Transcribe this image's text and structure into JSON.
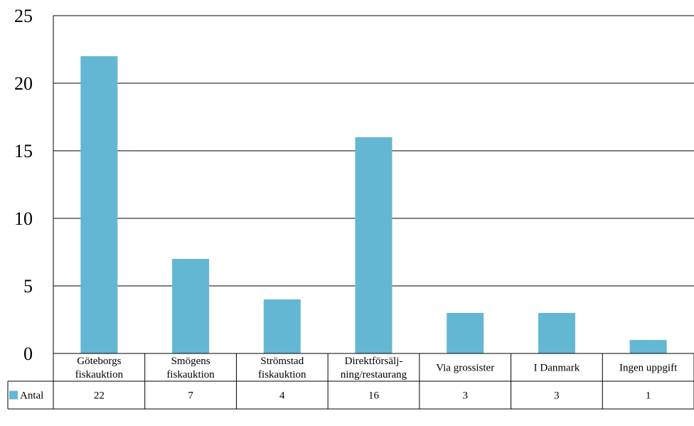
{
  "chart_data": {
    "type": "bar",
    "categories": [
      [
        "Göteborgs",
        "fiskauktion"
      ],
      [
        "Smögens",
        "fiskauktion"
      ],
      [
        "Strömstad",
        "fiskauktion"
      ],
      [
        "Direktförsälj-",
        "ning/restaurang"
      ],
      [
        "Via grossister"
      ],
      [
        "I Danmark"
      ],
      [
        "Ingen uppgift"
      ]
    ],
    "series": [
      {
        "name": "Antal",
        "values": [
          22,
          7,
          4,
          16,
          3,
          3,
          1
        ],
        "color": "#64b7d3"
      }
    ],
    "ylim": [
      0,
      25
    ],
    "yticks": [
      0,
      5,
      10,
      15,
      20,
      25
    ],
    "grid": true,
    "legend": "data-table-left",
    "data_table": true
  }
}
